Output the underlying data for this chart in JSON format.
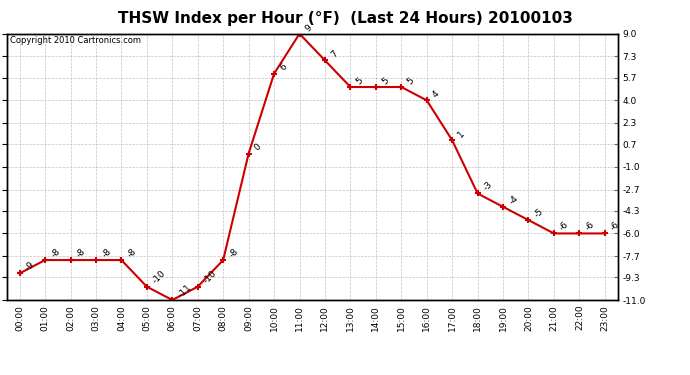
{
  "title": "THSW Index per Hour (°F)  (Last 24 Hours) 20100103",
  "copyright": "Copyright 2010 Cartronics.com",
  "hours": [
    0,
    1,
    2,
    3,
    4,
    5,
    6,
    7,
    8,
    9,
    10,
    11,
    12,
    13,
    14,
    15,
    16,
    17,
    18,
    19,
    20,
    21,
    22,
    23
  ],
  "values": [
    -9,
    -8,
    -8,
    -8,
    -8,
    -10,
    -11,
    -10,
    -8,
    0,
    6,
    9,
    7,
    5,
    5,
    5,
    4,
    1,
    -3,
    -4,
    -5,
    -6,
    -6,
    -6
  ],
  "x_labels": [
    "00:00",
    "01:00",
    "02:00",
    "03:00",
    "04:00",
    "05:00",
    "06:00",
    "07:00",
    "08:00",
    "09:00",
    "10:00",
    "11:00",
    "12:00",
    "13:00",
    "14:00",
    "15:00",
    "16:00",
    "17:00",
    "18:00",
    "19:00",
    "20:00",
    "21:00",
    "22:00",
    "23:00"
  ],
  "y_ticks": [
    9.0,
    7.3,
    5.7,
    4.0,
    2.3,
    0.7,
    -1.0,
    -2.7,
    -4.3,
    -6.0,
    -7.7,
    -9.3,
    -11.0
  ],
  "ylim": [
    -11.0,
    9.0
  ],
  "line_color": "#cc0000",
  "marker_color": "#cc0000",
  "bg_color": "#ffffff",
  "grid_color": "#bbbbbb",
  "title_fontsize": 11,
  "label_fontsize": 6.5,
  "annot_fontsize": 6.5,
  "copyright_fontsize": 6
}
